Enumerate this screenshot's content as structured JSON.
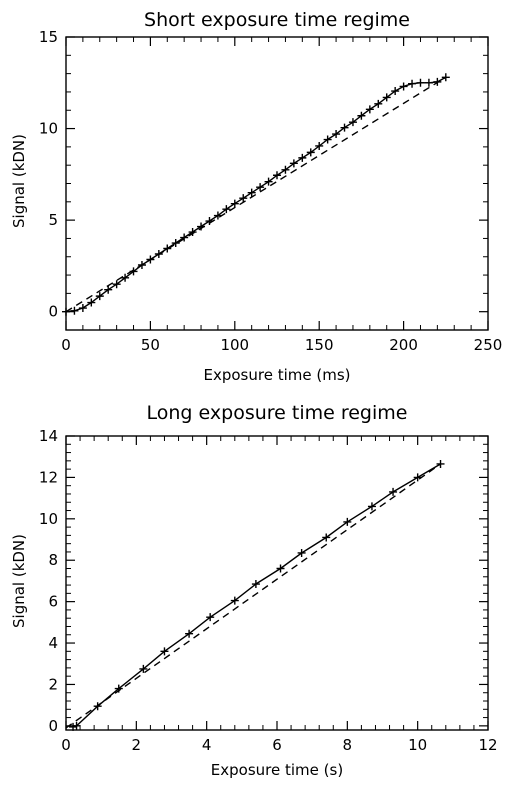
{
  "chart_data": [
    {
      "type": "line",
      "title": "Short exposure time regime",
      "xlabel": "Exposure time (ms)",
      "ylabel": "Signal (kDN)",
      "xlim": [
        0,
        250
      ],
      "ylim": [
        -1,
        15
      ],
      "xticks": [
        0,
        50,
        100,
        150,
        200,
        250
      ],
      "yticks": [
        0,
        5,
        10,
        15
      ],
      "grid": false,
      "series": [
        {
          "style": "solid line with plus markers",
          "x": [
            0,
            5,
            10,
            15,
            20,
            25,
            30,
            35,
            40,
            45,
            50,
            55,
            60,
            65,
            70,
            75,
            80,
            85,
            90,
            95,
            100,
            105,
            110,
            115,
            120,
            125,
            130,
            135,
            140,
            145,
            150,
            155,
            160,
            165,
            170,
            175,
            180,
            185,
            190,
            195,
            200,
            205,
            210,
            215,
            220,
            225
          ],
          "y": [
            0.0,
            0.05,
            0.2,
            0.5,
            0.85,
            1.2,
            1.5,
            1.85,
            2.2,
            2.55,
            2.85,
            3.15,
            3.45,
            3.75,
            4.05,
            4.35,
            4.65,
            4.95,
            5.25,
            5.6,
            5.9,
            6.2,
            6.5,
            6.8,
            7.1,
            7.45,
            7.75,
            8.1,
            8.4,
            8.7,
            9.05,
            9.4,
            9.7,
            10.05,
            10.35,
            10.7,
            11.05,
            11.35,
            11.7,
            12.05,
            12.3,
            12.45,
            12.5,
            12.5,
            12.55,
            12.8
          ]
        },
        {
          "style": "dashed line",
          "x": [
            0,
            225
          ],
          "y": [
            0.0,
            12.8
          ]
        }
      ]
    },
    {
      "type": "line",
      "title": "Long exposure time regime",
      "xlabel": "Exposure time (s)",
      "ylabel": "Signal (kDN)",
      "xlim": [
        0,
        12
      ],
      "ylim": [
        -0.2,
        14
      ],
      "xticks": [
        0,
        2,
        4,
        6,
        8,
        10,
        12
      ],
      "yticks": [
        0,
        2,
        4,
        6,
        8,
        10,
        12,
        14
      ],
      "grid": false,
      "series": [
        {
          "style": "solid line with plus markers",
          "x": [
            0.2,
            0.3,
            0.9,
            1.5,
            2.2,
            2.8,
            3.5,
            4.1,
            4.8,
            5.4,
            6.1,
            6.7,
            7.4,
            8.0,
            8.7,
            9.3,
            10.0,
            10.65
          ],
          "y": [
            -0.05,
            0.0,
            0.95,
            1.8,
            2.75,
            3.6,
            4.45,
            5.25,
            6.05,
            6.85,
            7.6,
            8.35,
            9.1,
            9.85,
            10.6,
            11.3,
            12.0,
            12.65
          ]
        },
        {
          "style": "dashed line",
          "x": [
            0,
            10.65
          ],
          "y": [
            -0.1,
            12.65
          ]
        }
      ]
    }
  ]
}
